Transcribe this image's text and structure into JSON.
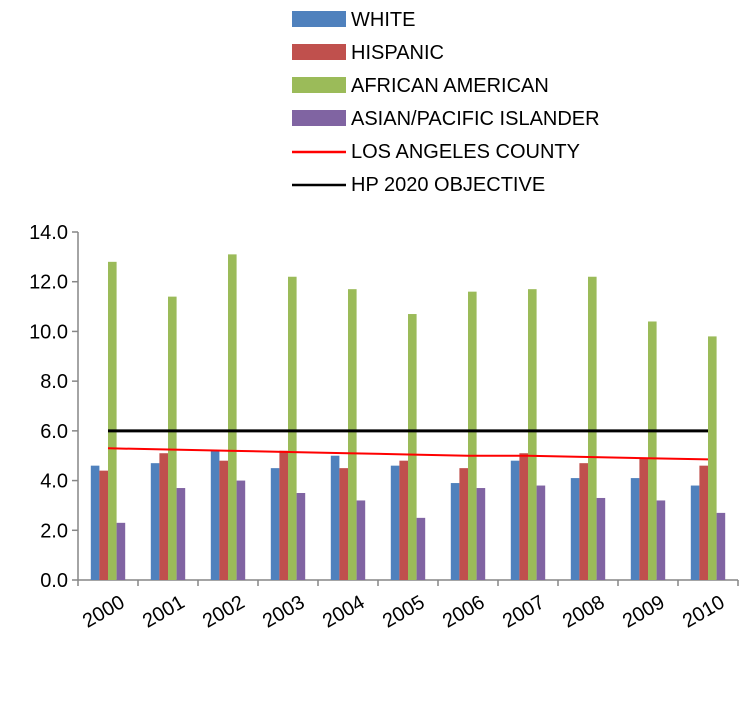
{
  "chart_data": {
    "type": "bar",
    "categories": [
      "2000",
      "2001",
      "2002",
      "2003",
      "2004",
      "2005",
      "2006",
      "2007",
      "2008",
      "2009",
      "2010"
    ],
    "series": [
      {
        "name": "WHITE",
        "color": "#4F81BD",
        "values": [
          4.6,
          4.7,
          5.2,
          4.5,
          5.0,
          4.6,
          3.9,
          4.8,
          4.1,
          4.1,
          3.8
        ]
      },
      {
        "name": "HISPANIC",
        "color": "#C0504D",
        "values": [
          4.4,
          5.1,
          4.8,
          5.2,
          4.5,
          4.8,
          4.5,
          5.1,
          4.7,
          4.9,
          4.6
        ]
      },
      {
        "name": "AFRICAN AMERICAN",
        "color": "#9BBB59",
        "values": [
          12.8,
          11.4,
          13.1,
          12.2,
          11.7,
          10.7,
          11.6,
          11.7,
          12.2,
          10.4,
          9.8
        ]
      },
      {
        "name": "ASIAN/PACIFIC ISLANDER",
        "color": "#8064A2",
        "values": [
          2.3,
          3.7,
          4.0,
          3.5,
          3.2,
          2.5,
          3.7,
          3.8,
          3.3,
          3.2,
          2.7
        ]
      }
    ],
    "lines": [
      {
        "name": "LOS ANGELES COUNTY",
        "color": "#FF0000",
        "values": [
          5.3,
          5.25,
          5.2,
          5.15,
          5.1,
          5.05,
          5.0,
          5.0,
          4.95,
          4.9,
          4.85
        ]
      },
      {
        "name": "HP 2020 OBJECTIVE",
        "color": "#000000",
        "values": [
          6.0,
          6.0,
          6.0,
          6.0,
          6.0,
          6.0,
          6.0,
          6.0,
          6.0,
          6.0,
          6.0
        ]
      }
    ],
    "yticks": [
      "0.0",
      "2.0",
      "4.0",
      "6.0",
      "8.0",
      "10.0",
      "12.0",
      "14.0"
    ],
    "ylim": [
      0,
      14
    ],
    "title": "",
    "xlabel": "",
    "ylabel": "",
    "legend_position": "top-center",
    "grid": false
  }
}
